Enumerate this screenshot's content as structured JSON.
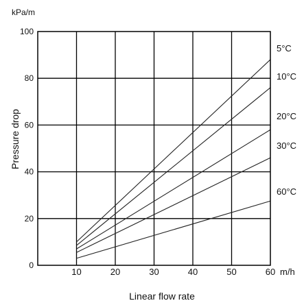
{
  "chart_data": {
    "type": "line",
    "unit_label": "kPa/m",
    "xlabel": "Linear flow rate",
    "ylabel": "Pressure drop",
    "x_unit": "m/h",
    "xlim": [
      0,
      60
    ],
    "ylim": [
      0,
      100
    ],
    "x_ticks": [
      "10",
      "20",
      "30",
      "40",
      "50",
      "60"
    ],
    "y_ticks": [
      "0",
      "20",
      "40",
      "60",
      "80",
      "100"
    ],
    "grid": true,
    "series": [
      {
        "name": "5°C",
        "x": [
          10,
          60
        ],
        "y": [
          10,
          88
        ]
      },
      {
        "name": "10°C",
        "x": [
          10,
          60
        ],
        "y": [
          8.5,
          76
        ]
      },
      {
        "name": "20°C",
        "x": [
          10,
          60
        ],
        "y": [
          7,
          58
        ]
      },
      {
        "name": "30°C",
        "x": [
          10,
          60
        ],
        "y": [
          5.5,
          46
        ]
      },
      {
        "name": "60°C",
        "x": [
          10,
          60
        ],
        "y": [
          3,
          27.5
        ]
      }
    ]
  }
}
